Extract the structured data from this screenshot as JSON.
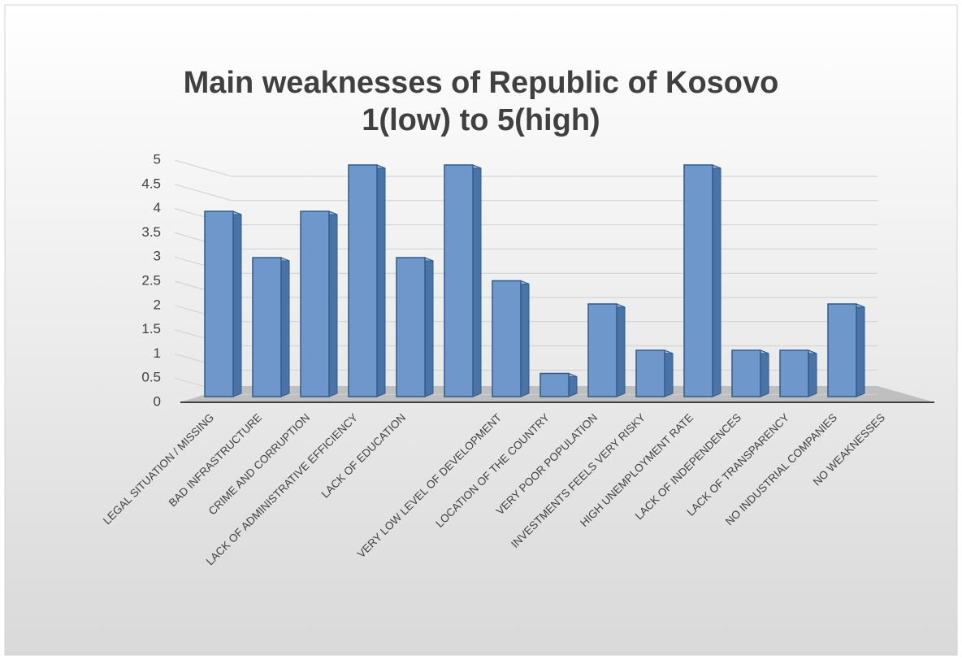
{
  "chart_data": {
    "type": "bar3d",
    "title": [
      "Main weaknesses of Republic of Kosovo",
      "1(low) to 5(high)"
    ],
    "categories": [
      "LEGAL SITUATION / MISSING",
      "BAD INFRASTRUCTURE",
      "CRIME AND CORRUPTION",
      "LACK OF ADMINISTRATIVE EFFICIENCY",
      "LACK OF EDUCATION",
      null,
      "VERY LOW LEVEL OF DEVELOPMENT",
      "LOCATION OF THE COUNTRY",
      "VERY POOR POPULATION",
      "INVESTMENTS FEELS VERY RISKY",
      "HIGH UNEMPLOYMENT RATE",
      "LACK OF INDEPENDENCES",
      "LACK OF TRANSPARENCY",
      "NO INDUSTRIAL COMPANIES",
      "NO WEAKNESSES"
    ],
    "values": [
      4,
      3,
      4,
      5,
      3,
      5,
      2.5,
      0.5,
      2,
      1,
      5,
      1,
      1,
      2,
      0
    ],
    "color": "#6e98cc",
    "ylim": [
      0,
      5
    ],
    "yticks": [
      0,
      0.5,
      1,
      1.5,
      2,
      2.5,
      3,
      3.5,
      4,
      4.5,
      5
    ],
    "grid": true
  }
}
